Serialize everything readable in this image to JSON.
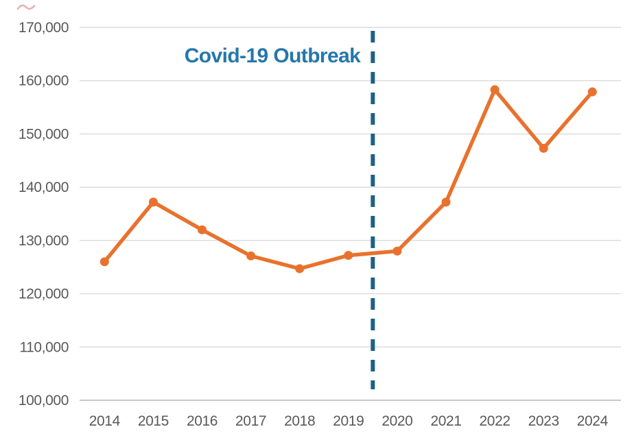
{
  "page": {
    "background": "#ffffff"
  },
  "decorations": {
    "red_scribble": {
      "name": "red-scribble-mark",
      "color": "#c0392b"
    }
  },
  "chart_data": {
    "type": "line",
    "title": "",
    "xlabel": "",
    "ylabel": "",
    "legend": "none",
    "grid": "horizontal",
    "categories": [
      "2014",
      "2015",
      "2016",
      "2017",
      "2018",
      "2019",
      "2020",
      "2021",
      "2022",
      "2023",
      "2024"
    ],
    "series": [
      {
        "name": "annual-count",
        "values": [
          126000,
          137200,
          132000,
          127100,
          124700,
          127200,
          128000,
          137200,
          158300,
          147300,
          157900
        ],
        "color": "#E8722D",
        "marker": "circle"
      }
    ],
    "ylim": [
      100000,
      170000
    ],
    "ytick_step": 10000,
    "yticks": [
      "100,000",
      "110,000",
      "120,000",
      "130,000",
      "140,000",
      "150,000",
      "160,000",
      "170,000"
    ],
    "annotation": {
      "label": "Covid-19 Outbreak",
      "x": 2019.5,
      "style": "dashed-vertical-line"
    },
    "colors": {
      "series": "#E8722D",
      "reference_line": "#1D6189",
      "annotation_text": "#2477AB",
      "gridline": "#DADADA",
      "axis_line": "#C8C8C8",
      "tick_text": "#595959"
    }
  }
}
